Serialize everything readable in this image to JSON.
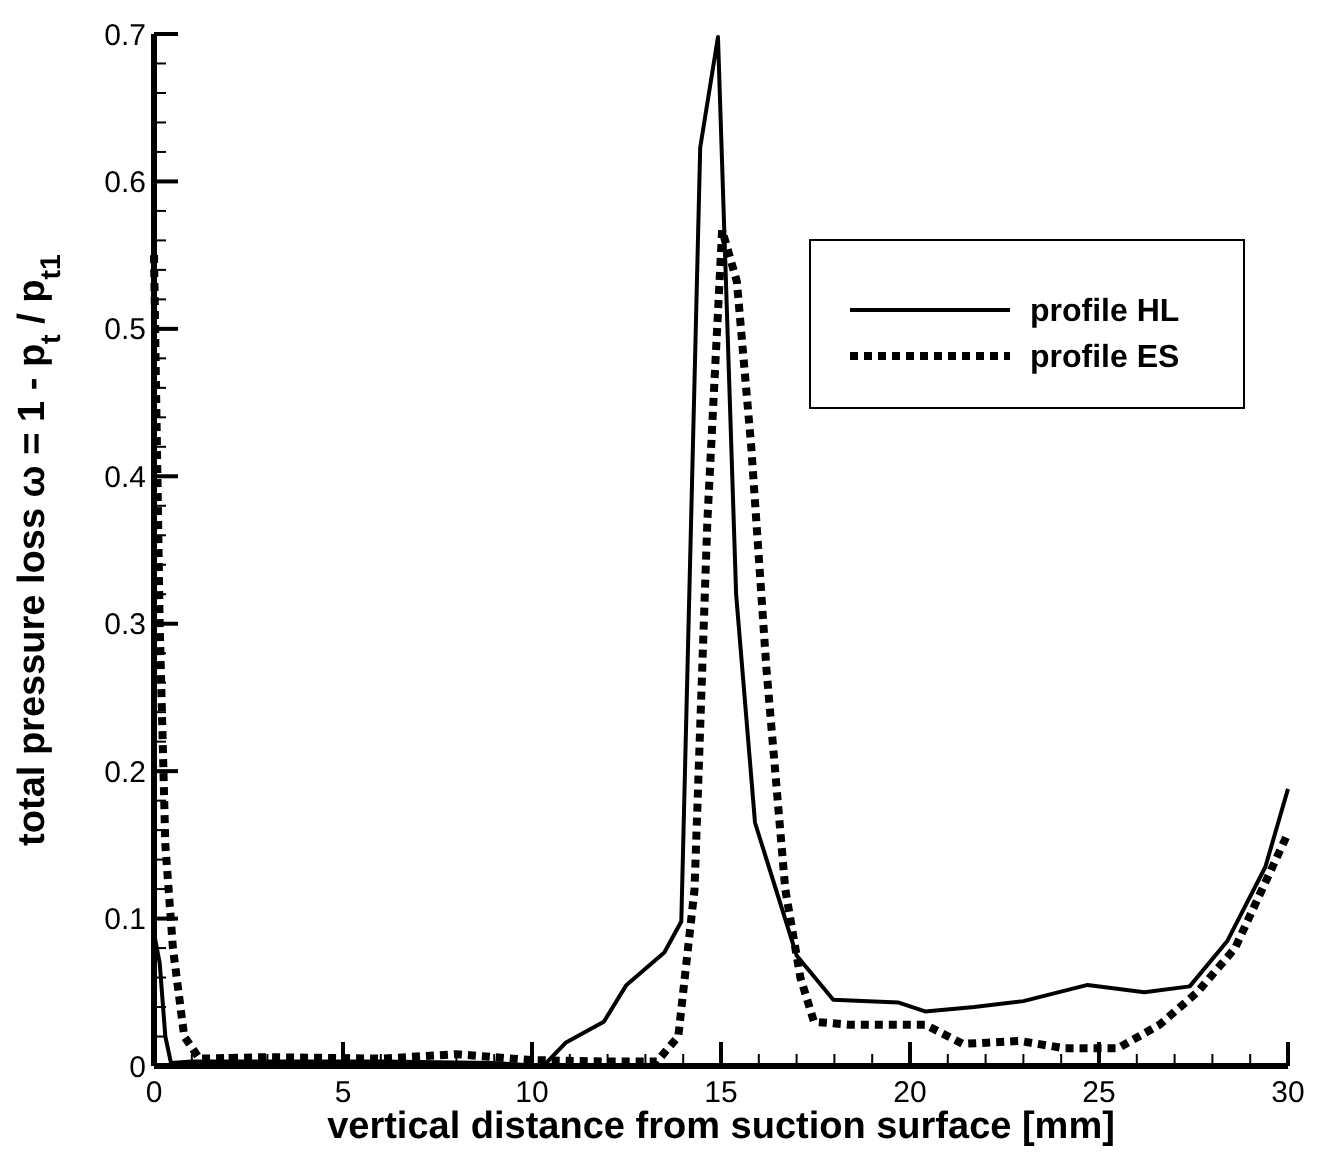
{
  "chart_data": {
    "type": "line",
    "xlabel": "vertical distance from suction surface  [mm]",
    "ylabel": "total pressure loss  ω = 1 - p$_{t}$ / p$_{t1}$",
    "xlim": [
      0,
      30
    ],
    "ylim": [
      0,
      0.7
    ],
    "xticks": [
      0,
      5,
      10,
      15,
      20,
      25,
      30
    ],
    "yticks": [
      0,
      0.1,
      0.2,
      0.3,
      0.4,
      0.5,
      0.6,
      0.7
    ],
    "grid": false,
    "legend": "top right",
    "marker": "none",
    "series": [
      {
        "name": "profile HL",
        "color": "#000000",
        "line_style": "solid",
        "x": [
          0,
          0.15,
          0.3,
          0.45,
          1,
          3,
          6,
          9,
          10.3,
          10.9,
          11.9,
          12.5,
          13.5,
          13.95,
          14.45,
          14.92,
          15.4,
          15.9,
          17,
          17.97,
          18.9,
          19.7,
          20.4,
          21.7,
          23,
          24.7,
          26.2,
          27.4,
          28.4,
          29.4,
          30
        ],
        "values": [
          0.09,
          0.07,
          0.02,
          0.002,
          0.003,
          0.003,
          0.003,
          0.002,
          0,
          0.016,
          0.03,
          0.055,
          0.077,
          0.098,
          0.623,
          0.698,
          0.32,
          0.165,
          0.075,
          0.045,
          0.044,
          0.043,
          0.037,
          0.04,
          0.044,
          0.055,
          0.05,
          0.054,
          0.085,
          0.135,
          0.188
        ]
      },
      {
        "name": "profile ES",
        "color": "#000000",
        "line_style": "dotted",
        "x": [
          0,
          0.15,
          0.3,
          0.5,
          0.8,
          1.2,
          3,
          6,
          8,
          10,
          12,
          13.3,
          13.87,
          14.3,
          14.64,
          15.03,
          15.42,
          15.8,
          16.2,
          16.7,
          17.1,
          17.46,
          18.4,
          19.6,
          20.4,
          21.4,
          22.9,
          24.1,
          25.5,
          26.6,
          27.6,
          28.6,
          30
        ],
        "values": [
          0.55,
          0.3,
          0.15,
          0.08,
          0.02,
          0.005,
          0.006,
          0.005,
          0.008,
          0.004,
          0.003,
          0.003,
          0.02,
          0.12,
          0.37,
          0.567,
          0.532,
          0.42,
          0.27,
          0.12,
          0.06,
          0.03,
          0.028,
          0.028,
          0.028,
          0.015,
          0.017,
          0.012,
          0.012,
          0.028,
          0.05,
          0.08,
          0.158
        ]
      }
    ]
  }
}
